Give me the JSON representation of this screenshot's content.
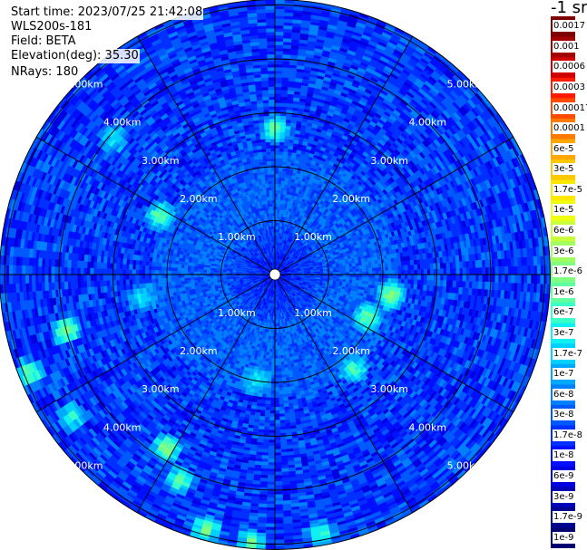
{
  "header": {
    "start_time": "Start time: 2023/07/25 21:42:08",
    "instrument": "WLS200s-181",
    "field": "Field: BETA",
    "elevation": "Elevation(deg): 35.30",
    "nrays": "NRays: 180"
  },
  "colorbar": {
    "units": "-1 sr",
    "labels": [
      "0.0017",
      "0.001",
      "0.0006",
      "0.0003",
      "0.00017",
      "0.0001",
      "6e-5",
      "3e-5",
      "1.7e-5",
      "1e-5",
      "6e-6",
      "3e-6",
      "1.7e-6",
      "1e-6",
      "6e-7",
      "3e-7",
      "1.7e-7",
      "1e-7",
      "6e-8",
      "3e-8",
      "1.7e-8",
      "1e-8",
      "6e-9",
      "3e-9",
      "1.7e-9",
      "1e-9"
    ],
    "colors": [
      "#7f0000",
      "#a30000",
      "#d00000",
      "#ff1a00",
      "#ff4a00",
      "#ff7a00",
      "#ffa600",
      "#ffc800",
      "#ffe800",
      "#f0ff10",
      "#c8ff3a",
      "#a0ff60",
      "#80ff80",
      "#60ffa0",
      "#3affc8",
      "#10f0f0",
      "#00d0ff",
      "#00a8ff",
      "#0080ff",
      "#0058ff",
      "#0030ff",
      "#0010ff",
      "#0000e0",
      "#0000b8",
      "#000090",
      "#000070"
    ]
  },
  "chart_data": {
    "type": "heatmap",
    "projection": "polar PPI scan",
    "field": "BETA",
    "nrays": 180,
    "range_rings_km": [
      1.0,
      2.0,
      3.0,
      4.0,
      5.0
    ],
    "range_labels": [
      "1.00km",
      "2.00km",
      "3.00km",
      "4.00km",
      "5.00km"
    ],
    "spokes_deg": [
      0,
      30,
      60,
      90,
      120,
      150,
      180,
      210,
      240,
      270,
      300,
      330
    ],
    "max_range_km": 5.1,
    "scale": "log",
    "value_range": [
      1e-09,
      0.0017
    ],
    "typical_value": 1.7e-08,
    "near_center_value": 3e-08,
    "hotspots": [
      {
        "azimuth_deg": 0,
        "range_km": 2.7,
        "value": 1e-06
      },
      {
        "azimuth_deg": 297,
        "range_km": 2.4,
        "value": 1e-06
      },
      {
        "azimuth_deg": 310,
        "range_km": 3.9,
        "value": 3e-07
      },
      {
        "azimuth_deg": 100,
        "range_km": 2.2,
        "value": 1.7e-06
      },
      {
        "azimuth_deg": 115,
        "range_km": 1.9,
        "value": 1e-06
      },
      {
        "azimuth_deg": 140,
        "range_km": 2.3,
        "value": 6e-07
      },
      {
        "azimuth_deg": 255,
        "range_km": 4.0,
        "value": 1.7e-06
      },
      {
        "azimuth_deg": 248,
        "range_km": 4.9,
        "value": 1e-06
      },
      {
        "azimuth_deg": 235,
        "range_km": 4.6,
        "value": 6e-07
      },
      {
        "azimuth_deg": 212,
        "range_km": 3.8,
        "value": 1.7e-06
      },
      {
        "azimuth_deg": 205,
        "range_km": 4.2,
        "value": 1e-06
      },
      {
        "azimuth_deg": 195,
        "range_km": 4.9,
        "value": 1.7e-06
      },
      {
        "azimuth_deg": 185,
        "range_km": 5.0,
        "value": 1e-06
      },
      {
        "azimuth_deg": 170,
        "range_km": 4.9,
        "value": 6e-07
      },
      {
        "azimuth_deg": 190,
        "range_km": 2.0,
        "value": 3e-07
      },
      {
        "azimuth_deg": 260,
        "range_km": 2.5,
        "value": 3e-07
      }
    ]
  }
}
